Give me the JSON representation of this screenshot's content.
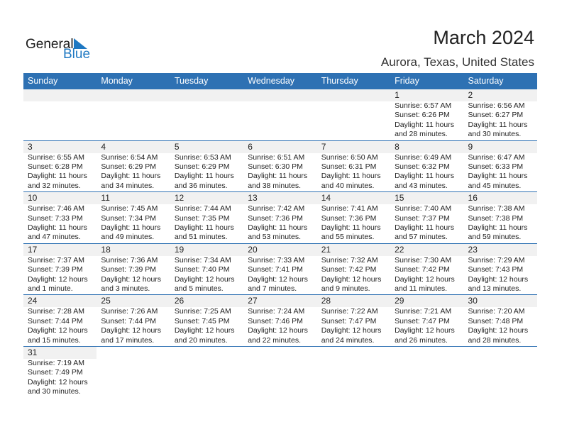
{
  "logo": {
    "text1": "General",
    "text2": "Blue"
  },
  "title": "March 2024",
  "location": "Aurora, Texas, United States",
  "weekdays": [
    "Sunday",
    "Monday",
    "Tuesday",
    "Wednesday",
    "Thursday",
    "Friday",
    "Saturday"
  ],
  "first_weekday_offset": 5,
  "days": [
    {
      "d": "1",
      "sunrise": "Sunrise: 6:57 AM",
      "sunset": "Sunset: 6:26 PM",
      "daylight1": "Daylight: 11 hours",
      "daylight2": "and 28 minutes."
    },
    {
      "d": "2",
      "sunrise": "Sunrise: 6:56 AM",
      "sunset": "Sunset: 6:27 PM",
      "daylight1": "Daylight: 11 hours",
      "daylight2": "and 30 minutes."
    },
    {
      "d": "3",
      "sunrise": "Sunrise: 6:55 AM",
      "sunset": "Sunset: 6:28 PM",
      "daylight1": "Daylight: 11 hours",
      "daylight2": "and 32 minutes."
    },
    {
      "d": "4",
      "sunrise": "Sunrise: 6:54 AM",
      "sunset": "Sunset: 6:29 PM",
      "daylight1": "Daylight: 11 hours",
      "daylight2": "and 34 minutes."
    },
    {
      "d": "5",
      "sunrise": "Sunrise: 6:53 AM",
      "sunset": "Sunset: 6:29 PM",
      "daylight1": "Daylight: 11 hours",
      "daylight2": "and 36 minutes."
    },
    {
      "d": "6",
      "sunrise": "Sunrise: 6:51 AM",
      "sunset": "Sunset: 6:30 PM",
      "daylight1": "Daylight: 11 hours",
      "daylight2": "and 38 minutes."
    },
    {
      "d": "7",
      "sunrise": "Sunrise: 6:50 AM",
      "sunset": "Sunset: 6:31 PM",
      "daylight1": "Daylight: 11 hours",
      "daylight2": "and 40 minutes."
    },
    {
      "d": "8",
      "sunrise": "Sunrise: 6:49 AM",
      "sunset": "Sunset: 6:32 PM",
      "daylight1": "Daylight: 11 hours",
      "daylight2": "and 43 minutes."
    },
    {
      "d": "9",
      "sunrise": "Sunrise: 6:47 AM",
      "sunset": "Sunset: 6:33 PM",
      "daylight1": "Daylight: 11 hours",
      "daylight2": "and 45 minutes."
    },
    {
      "d": "10",
      "sunrise": "Sunrise: 7:46 AM",
      "sunset": "Sunset: 7:33 PM",
      "daylight1": "Daylight: 11 hours",
      "daylight2": "and 47 minutes."
    },
    {
      "d": "11",
      "sunrise": "Sunrise: 7:45 AM",
      "sunset": "Sunset: 7:34 PM",
      "daylight1": "Daylight: 11 hours",
      "daylight2": "and 49 minutes."
    },
    {
      "d": "12",
      "sunrise": "Sunrise: 7:44 AM",
      "sunset": "Sunset: 7:35 PM",
      "daylight1": "Daylight: 11 hours",
      "daylight2": "and 51 minutes."
    },
    {
      "d": "13",
      "sunrise": "Sunrise: 7:42 AM",
      "sunset": "Sunset: 7:36 PM",
      "daylight1": "Daylight: 11 hours",
      "daylight2": "and 53 minutes."
    },
    {
      "d": "14",
      "sunrise": "Sunrise: 7:41 AM",
      "sunset": "Sunset: 7:36 PM",
      "daylight1": "Daylight: 11 hours",
      "daylight2": "and 55 minutes."
    },
    {
      "d": "15",
      "sunrise": "Sunrise: 7:40 AM",
      "sunset": "Sunset: 7:37 PM",
      "daylight1": "Daylight: 11 hours",
      "daylight2": "and 57 minutes."
    },
    {
      "d": "16",
      "sunrise": "Sunrise: 7:38 AM",
      "sunset": "Sunset: 7:38 PM",
      "daylight1": "Daylight: 11 hours",
      "daylight2": "and 59 minutes."
    },
    {
      "d": "17",
      "sunrise": "Sunrise: 7:37 AM",
      "sunset": "Sunset: 7:39 PM",
      "daylight1": "Daylight: 12 hours",
      "daylight2": "and 1 minute."
    },
    {
      "d": "18",
      "sunrise": "Sunrise: 7:36 AM",
      "sunset": "Sunset: 7:39 PM",
      "daylight1": "Daylight: 12 hours",
      "daylight2": "and 3 minutes."
    },
    {
      "d": "19",
      "sunrise": "Sunrise: 7:34 AM",
      "sunset": "Sunset: 7:40 PM",
      "daylight1": "Daylight: 12 hours",
      "daylight2": "and 5 minutes."
    },
    {
      "d": "20",
      "sunrise": "Sunrise: 7:33 AM",
      "sunset": "Sunset: 7:41 PM",
      "daylight1": "Daylight: 12 hours",
      "daylight2": "and 7 minutes."
    },
    {
      "d": "21",
      "sunrise": "Sunrise: 7:32 AM",
      "sunset": "Sunset: 7:42 PM",
      "daylight1": "Daylight: 12 hours",
      "daylight2": "and 9 minutes."
    },
    {
      "d": "22",
      "sunrise": "Sunrise: 7:30 AM",
      "sunset": "Sunset: 7:42 PM",
      "daylight1": "Daylight: 12 hours",
      "daylight2": "and 11 minutes."
    },
    {
      "d": "23",
      "sunrise": "Sunrise: 7:29 AM",
      "sunset": "Sunset: 7:43 PM",
      "daylight1": "Daylight: 12 hours",
      "daylight2": "and 13 minutes."
    },
    {
      "d": "24",
      "sunrise": "Sunrise: 7:28 AM",
      "sunset": "Sunset: 7:44 PM",
      "daylight1": "Daylight: 12 hours",
      "daylight2": "and 15 minutes."
    },
    {
      "d": "25",
      "sunrise": "Sunrise: 7:26 AM",
      "sunset": "Sunset: 7:44 PM",
      "daylight1": "Daylight: 12 hours",
      "daylight2": "and 17 minutes."
    },
    {
      "d": "26",
      "sunrise": "Sunrise: 7:25 AM",
      "sunset": "Sunset: 7:45 PM",
      "daylight1": "Daylight: 12 hours",
      "daylight2": "and 20 minutes."
    },
    {
      "d": "27",
      "sunrise": "Sunrise: 7:24 AM",
      "sunset": "Sunset: 7:46 PM",
      "daylight1": "Daylight: 12 hours",
      "daylight2": "and 22 minutes."
    },
    {
      "d": "28",
      "sunrise": "Sunrise: 7:22 AM",
      "sunset": "Sunset: 7:47 PM",
      "daylight1": "Daylight: 12 hours",
      "daylight2": "and 24 minutes."
    },
    {
      "d": "29",
      "sunrise": "Sunrise: 7:21 AM",
      "sunset": "Sunset: 7:47 PM",
      "daylight1": "Daylight: 12 hours",
      "daylight2": "and 26 minutes."
    },
    {
      "d": "30",
      "sunrise": "Sunrise: 7:20 AM",
      "sunset": "Sunset: 7:48 PM",
      "daylight1": "Daylight: 12 hours",
      "daylight2": "and 28 minutes."
    },
    {
      "d": "31",
      "sunrise": "Sunrise: 7:19 AM",
      "sunset": "Sunset: 7:49 PM",
      "daylight1": "Daylight: 12 hours",
      "daylight2": "and 30 minutes."
    }
  ],
  "colors": {
    "header_bg": "#2e71b3",
    "date_strip": "#f1f1f1",
    "brand": "#1e78c2"
  }
}
